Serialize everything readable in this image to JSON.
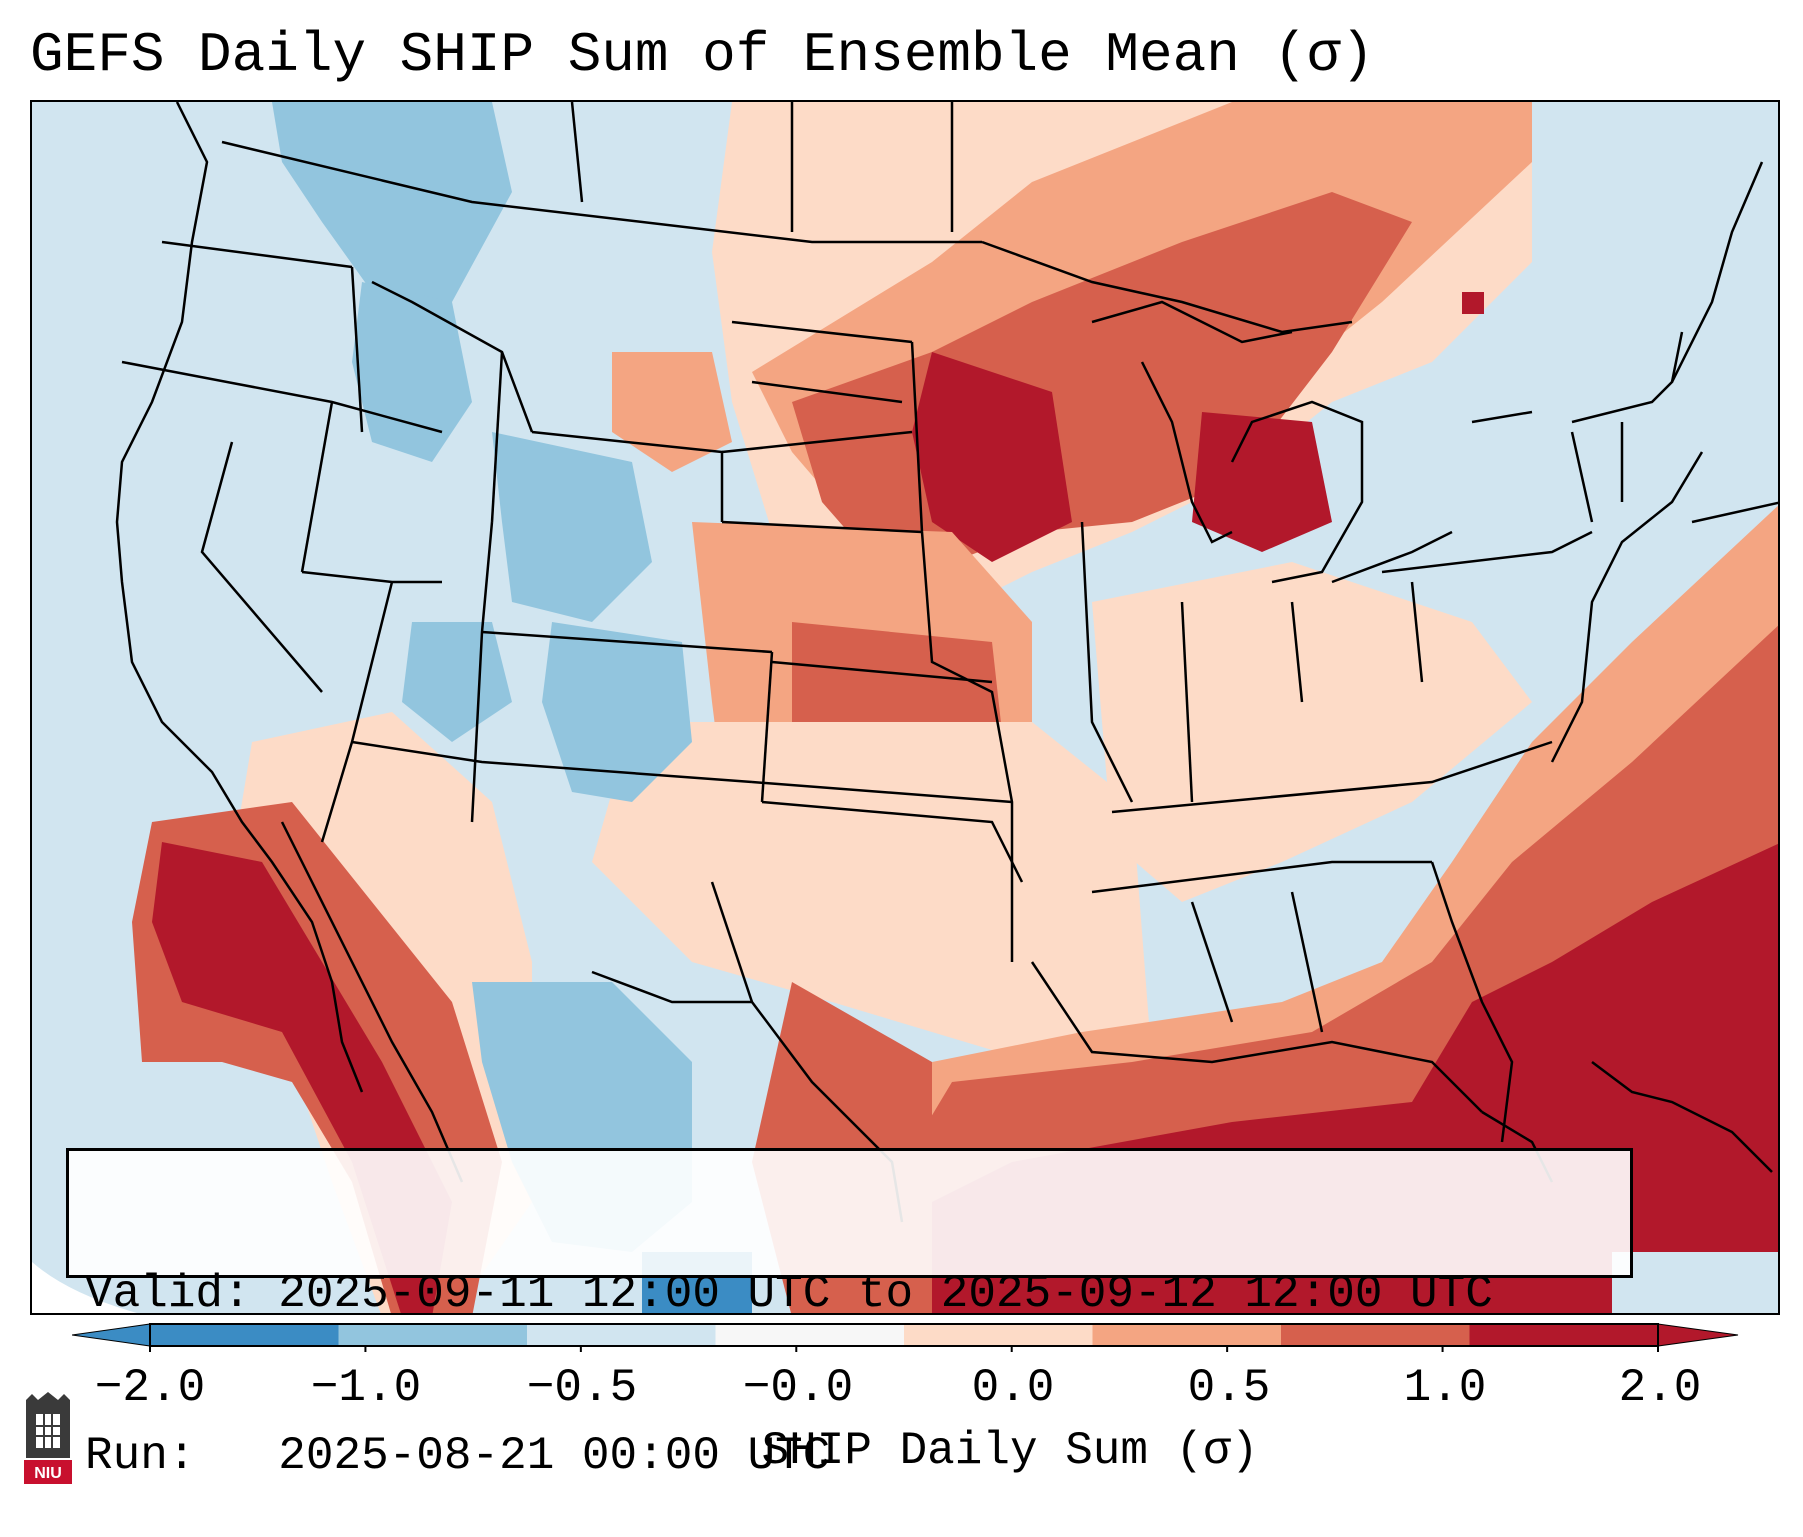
{
  "title": "GEFS Daily SHIP Sum of Ensemble Mean (σ)",
  "info": {
    "valid_label": "Valid:",
    "valid_value": "2025-09-11 12:00 UTC to 2025-09-12 12:00 UTC",
    "run_label": "Run:",
    "run_value": "2025-08-21 00:00 UTC"
  },
  "colorbar": {
    "label": "SHIP Daily Sum (σ)",
    "ticks": [
      "−2.0",
      "−1.0",
      "−0.5",
      "−0.0",
      "0.0",
      "0.5",
      "1.0",
      "2.0"
    ],
    "colors": [
      "#3b8cc4",
      "#92c5de",
      "#d1e5f0",
      "#f7f7f7",
      "#fddbc7",
      "#f4a582",
      "#d6604d",
      "#b2182b"
    ]
  },
  "logo": {
    "text": "NIU"
  }
}
